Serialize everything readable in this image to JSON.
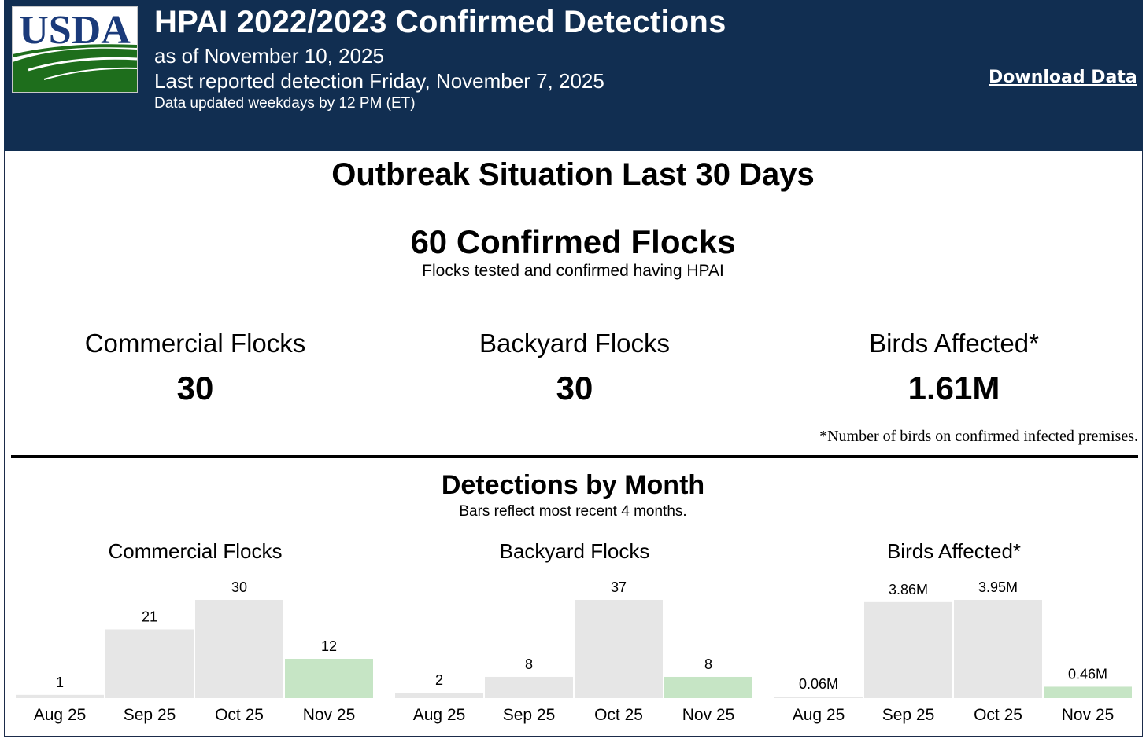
{
  "header": {
    "logo_text": "USDA",
    "title": "HPAI 2022/2023 Confirmed Detections",
    "as_of": "as of November 10, 2025",
    "last_detection": "Last reported detection Friday, November 7, 2025",
    "update_note": "Data updated weekdays by 12 PM (ET)",
    "download_label": "Download Data"
  },
  "summary": {
    "heading": "Outbreak Situation Last 30 Days",
    "confirmed_flocks": "60 Confirmed Flocks",
    "confirmed_flocks_sub": "Flocks tested and confirmed having HPAI",
    "stats": [
      {
        "label": "Commercial Flocks",
        "value": "30"
      },
      {
        "label": "Backyard Flocks",
        "value": "30"
      },
      {
        "label": "Birds Affected*",
        "value": "1.61M"
      }
    ],
    "footnote": "*Number of birds on confirmed infected premises."
  },
  "monthly": {
    "heading": "Detections by Month",
    "subheading": "Bars reflect most recent 4 months."
  },
  "colors": {
    "header_bg": "#112e51",
    "bar_past": "#e6e6e6",
    "bar_current": "#c6e5c5",
    "usda_blue": "#1a3a7a",
    "usda_green": "#1e6e1c"
  },
  "chart_data": [
    {
      "type": "bar",
      "title": "Commercial Flocks",
      "categories": [
        "Aug 25",
        "Sep 25",
        "Oct 25",
        "Nov 25"
      ],
      "values": [
        1,
        21,
        30,
        12
      ],
      "labels": [
        "1",
        "21",
        "30",
        "12"
      ],
      "highlight_last": true
    },
    {
      "type": "bar",
      "title": "Backyard Flocks",
      "categories": [
        "Aug 25",
        "Sep 25",
        "Oct 25",
        "Nov 25"
      ],
      "values": [
        2,
        8,
        37,
        8
      ],
      "labels": [
        "2",
        "8",
        "37",
        "8"
      ],
      "highlight_last": true
    },
    {
      "type": "bar",
      "title": "Birds Affected*",
      "categories": [
        "Aug 25",
        "Sep 25",
        "Oct 25",
        "Nov 25"
      ],
      "values": [
        0.06,
        3.86,
        3.95,
        0.46
      ],
      "labels": [
        "0.06M",
        "3.86M",
        "3.95M",
        "0.46M"
      ],
      "highlight_last": true
    }
  ]
}
